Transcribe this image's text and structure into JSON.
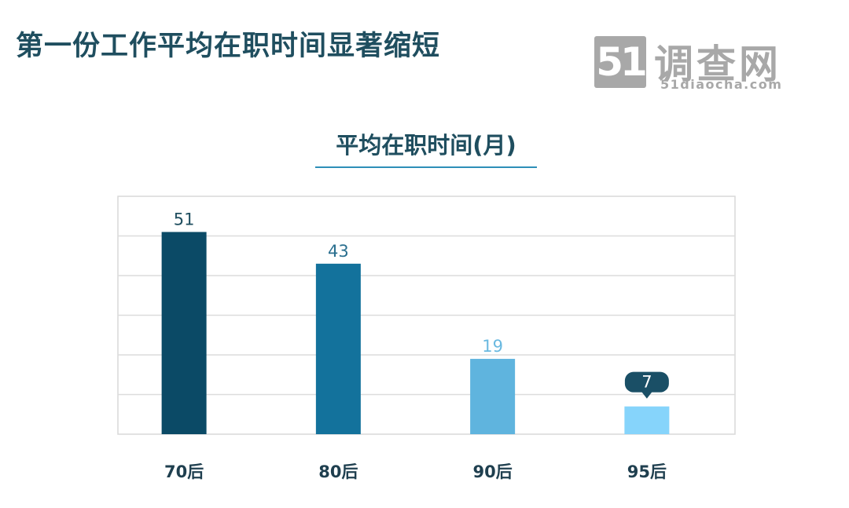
{
  "header": {
    "title": "第一份工作平均在职时间显著缩短"
  },
  "logo": {
    "number": "51",
    "name": "调查网",
    "url": "51diaocha.com"
  },
  "chart_data": {
    "type": "bar",
    "title": "平均在职时间(月)",
    "categories": [
      "70后",
      "80后",
      "90后",
      "95后"
    ],
    "values": [
      51,
      43,
      19,
      7
    ],
    "ylim": [
      0,
      60
    ],
    "grid": true,
    "bar_colors": [
      "#0b4a66",
      "#13729c",
      "#5fb4de",
      "#86d4fb"
    ],
    "label_colors": [
      "#1f4e5f",
      "#2a6f8f",
      "#6ab9e0",
      "#ffffff"
    ],
    "highlight_bubble_color": "#1a4f66",
    "highlight_index": 3
  }
}
